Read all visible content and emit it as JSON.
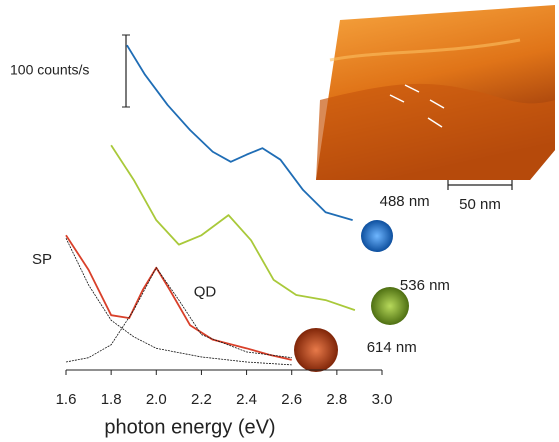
{
  "chart_data": {
    "type": "line",
    "x_label": "photon energy (eV)",
    "xlim": [
      1.6,
      3.0
    ],
    "xticks": [
      1.6,
      1.8,
      {
        "value": 2,
        "label": "2.0"
      },
      2.2,
      2.4,
      2.6,
      2.8,
      {
        "value": 3,
        "label": "3.0"
      }
    ],
    "ylim": [
      0,
      500
    ],
    "scale_bar_value": 100,
    "scale_bar_label": "100 counts/s",
    "inset_scale_label": "50 nm",
    "series": [
      {
        "name": "488 nm",
        "color": "#1f6db5",
        "x": [
          1.87,
          1.95,
          2.05,
          2.15,
          2.25,
          2.33,
          2.4,
          2.47,
          2.55,
          2.65,
          2.75,
          2.87
        ],
        "values": [
          465,
          424,
          382,
          347,
          317,
          303,
          313,
          322,
          306,
          264,
          233,
          222
        ]
      },
      {
        "name": "536 nm",
        "color": "#a9c93a",
        "x": [
          1.8,
          1.9,
          2.0,
          2.1,
          2.2,
          2.32,
          2.42,
          2.52,
          2.62,
          2.75,
          2.88
        ],
        "values": [
          326,
          278,
          222,
          188,
          201,
          229,
          194,
          139,
          118,
          111,
          97
        ]
      },
      {
        "name": "614 nm",
        "color": "#d9402a",
        "x": [
          1.6,
          1.7,
          1.8,
          1.88,
          1.94,
          2.0,
          2.06,
          2.15,
          2.25,
          2.4,
          2.5,
          2.6
        ],
        "values": [
          201,
          153,
          90,
          86,
          125,
          156,
          125,
          76,
          56,
          44,
          35,
          28
        ]
      },
      {
        "name": "SP",
        "color": "#111111",
        "x": [
          1.6,
          1.7,
          1.8,
          1.9,
          2.0,
          2.2,
          2.4,
          2.6
        ],
        "values": [
          197,
          132,
          83,
          60,
          44,
          32,
          25,
          21
        ]
      },
      {
        "name": "QD",
        "color": "#111111",
        "x": [
          1.6,
          1.7,
          1.8,
          1.9,
          2.0,
          2.1,
          2.2,
          2.4,
          2.6
        ],
        "values": [
          25,
          31,
          49,
          97,
          156,
          111,
          63,
          39,
          31
        ]
      }
    ]
  }
}
